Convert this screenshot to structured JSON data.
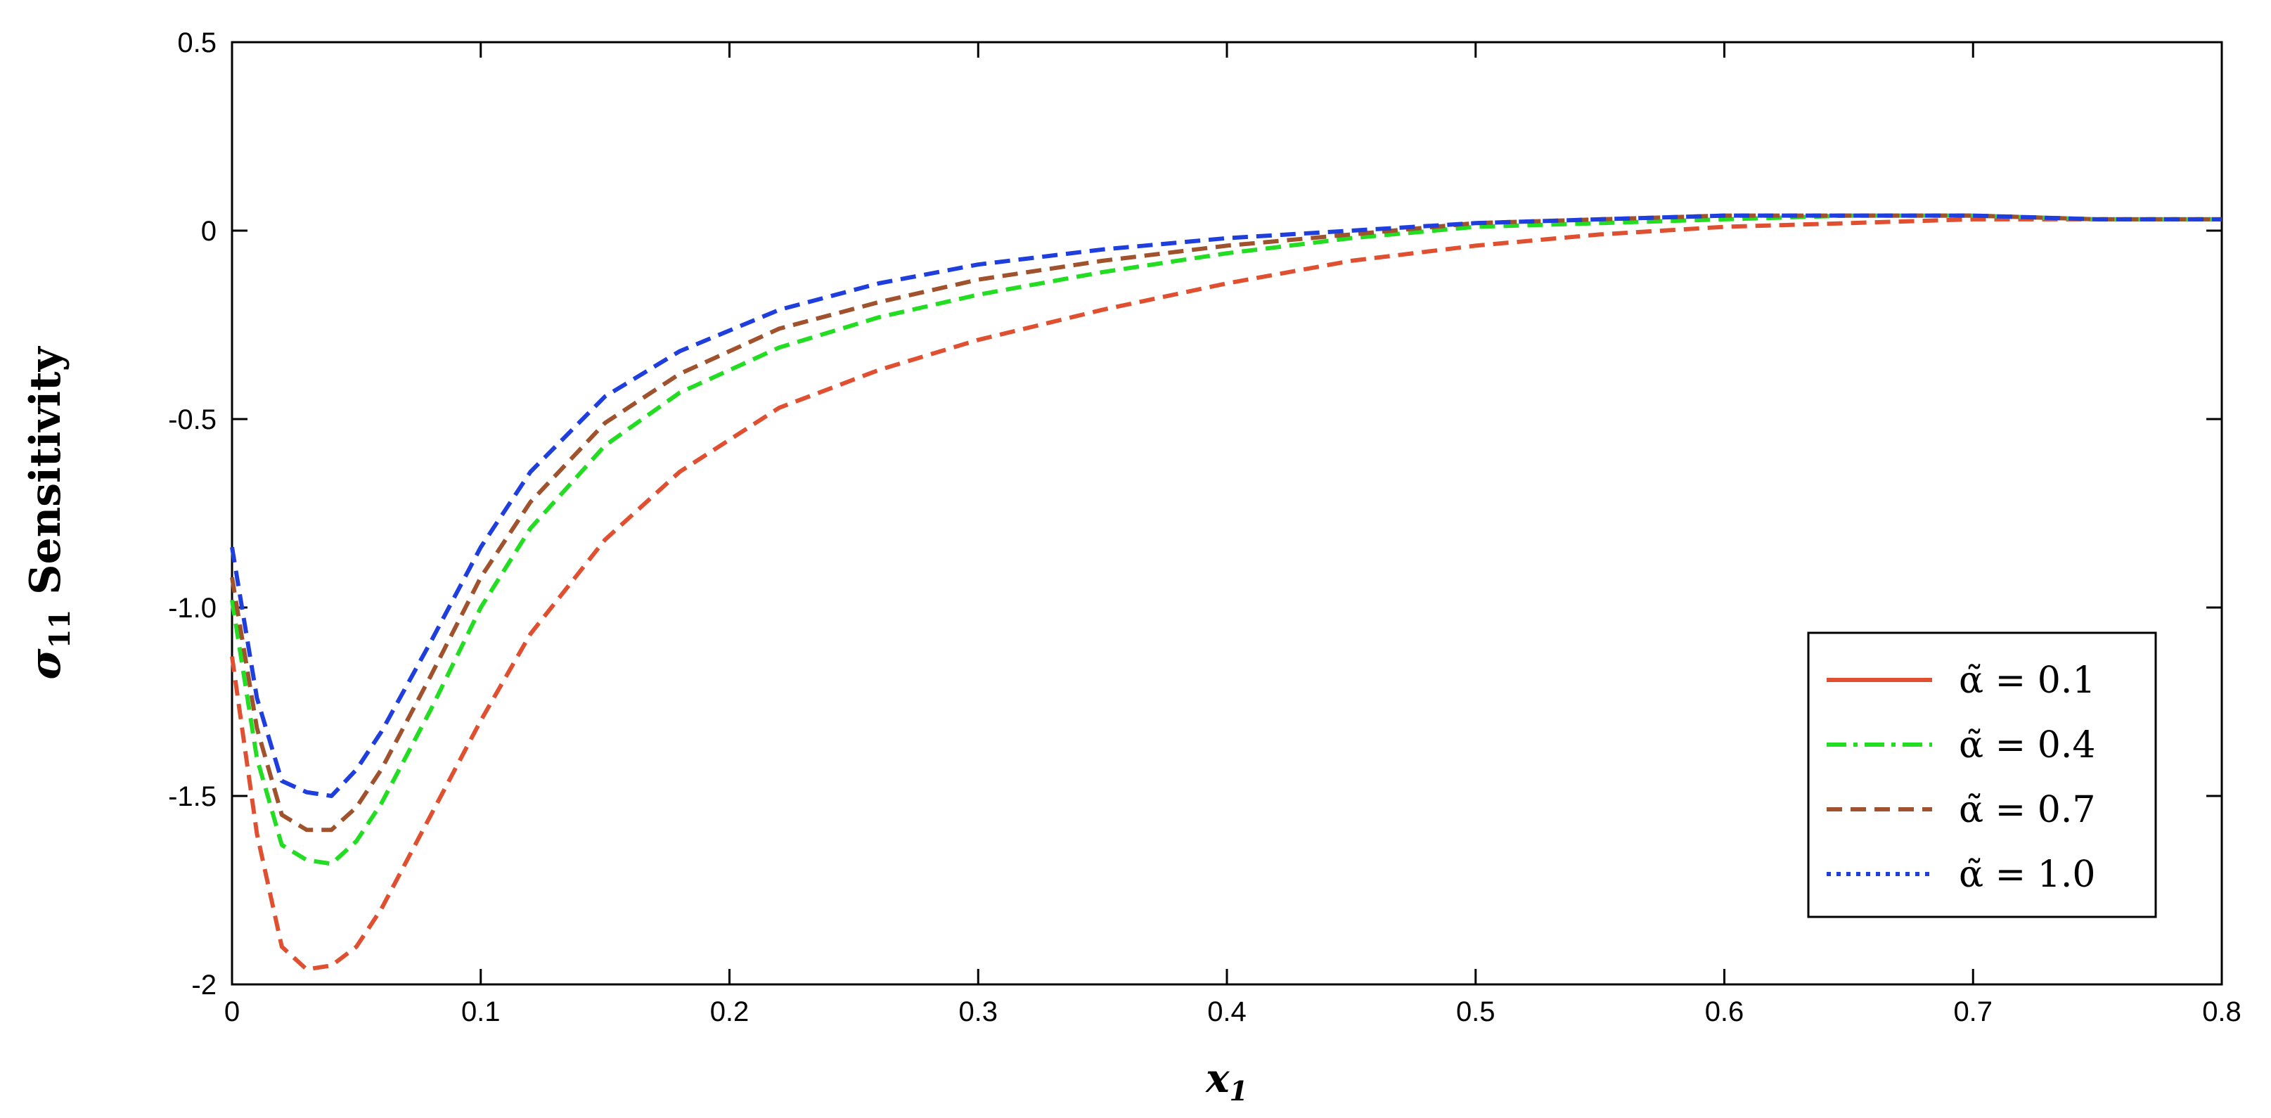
{
  "chart_data": {
    "type": "line",
    "title": "",
    "xlabel": "x",
    "xlabel_sub": "1",
    "ylabel": "σ",
    "ylabel_sub": "11",
    "ylabel_suffix": " Sensitivity",
    "xlim": [
      0,
      0.8
    ],
    "ylim": [
      -2,
      0.5
    ],
    "xticks": [
      0,
      0.1,
      0.2,
      0.3,
      0.4,
      0.5,
      0.6,
      0.7,
      0.8
    ],
    "xtick_labels": [
      "0",
      "0.1",
      "0.2",
      "0.3",
      "0.4",
      "0.5",
      "0.6",
      "0.7",
      "0.8"
    ],
    "yticks": [
      0.5,
      0,
      -0.5,
      -1,
      -1.5,
      -2
    ],
    "ytick_labels": [
      "0.5",
      "0",
      "-0.5",
      "-1.0",
      "-1.5",
      "-2"
    ],
    "grid": false,
    "legend_position": "bottom-right",
    "series": [
      {
        "name": "α̃ = 0.1",
        "color": "#e05030",
        "x": [
          0,
          0.01,
          0.02,
          0.03,
          0.04,
          0.05,
          0.06,
          0.08,
          0.1,
          0.12,
          0.15,
          0.18,
          0.22,
          0.26,
          0.3,
          0.35,
          0.4,
          0.45,
          0.5,
          0.55,
          0.6,
          0.65,
          0.7,
          0.75,
          0.8
        ],
        "y": [
          -1.13,
          -1.6,
          -1.9,
          -1.96,
          -1.95,
          -1.9,
          -1.8,
          -1.55,
          -1.3,
          -1.07,
          -0.82,
          -0.64,
          -0.47,
          -0.37,
          -0.29,
          -0.21,
          -0.14,
          -0.08,
          -0.04,
          -0.01,
          0.01,
          0.02,
          0.03,
          0.03,
          0.03
        ]
      },
      {
        "name": "α̃ = 0.4",
        "color": "#22dd22",
        "x": [
          0,
          0.01,
          0.02,
          0.03,
          0.04,
          0.05,
          0.06,
          0.08,
          0.1,
          0.12,
          0.15,
          0.18,
          0.22,
          0.26,
          0.3,
          0.35,
          0.4,
          0.45,
          0.5,
          0.55,
          0.6,
          0.65,
          0.7,
          0.75,
          0.8
        ],
        "y": [
          -0.98,
          -1.4,
          -1.63,
          -1.67,
          -1.68,
          -1.62,
          -1.52,
          -1.27,
          -1.0,
          -0.79,
          -0.57,
          -0.43,
          -0.31,
          -0.23,
          -0.17,
          -0.11,
          -0.06,
          -0.02,
          0.01,
          0.02,
          0.03,
          0.04,
          0.04,
          0.03,
          0.03
        ]
      },
      {
        "name": "α̃ = 0.7",
        "color": "#a0522d",
        "x": [
          0,
          0.01,
          0.02,
          0.03,
          0.04,
          0.05,
          0.06,
          0.08,
          0.1,
          0.12,
          0.15,
          0.18,
          0.22,
          0.26,
          0.3,
          0.35,
          0.4,
          0.45,
          0.5,
          0.55,
          0.6,
          0.65,
          0.7,
          0.75,
          0.8
        ],
        "y": [
          -0.92,
          -1.32,
          -1.55,
          -1.59,
          -1.59,
          -1.53,
          -1.43,
          -1.18,
          -0.92,
          -0.72,
          -0.51,
          -0.38,
          -0.26,
          -0.19,
          -0.13,
          -0.08,
          -0.04,
          -0.01,
          0.02,
          0.03,
          0.04,
          0.04,
          0.04,
          0.03,
          0.03
        ]
      },
      {
        "name": "α̃ = 1.0",
        "color": "#1e3ede",
        "x": [
          0,
          0.01,
          0.02,
          0.03,
          0.04,
          0.05,
          0.06,
          0.08,
          0.1,
          0.12,
          0.15,
          0.18,
          0.22,
          0.26,
          0.3,
          0.35,
          0.4,
          0.45,
          0.5,
          0.55,
          0.6,
          0.65,
          0.7,
          0.75,
          0.8
        ],
        "y": [
          -0.84,
          -1.24,
          -1.46,
          -1.49,
          -1.5,
          -1.43,
          -1.33,
          -1.09,
          -0.84,
          -0.64,
          -0.44,
          -0.32,
          -0.21,
          -0.14,
          -0.09,
          -0.05,
          -0.02,
          0.0,
          0.02,
          0.03,
          0.04,
          0.04,
          0.04,
          0.03,
          0.03
        ]
      }
    ]
  }
}
